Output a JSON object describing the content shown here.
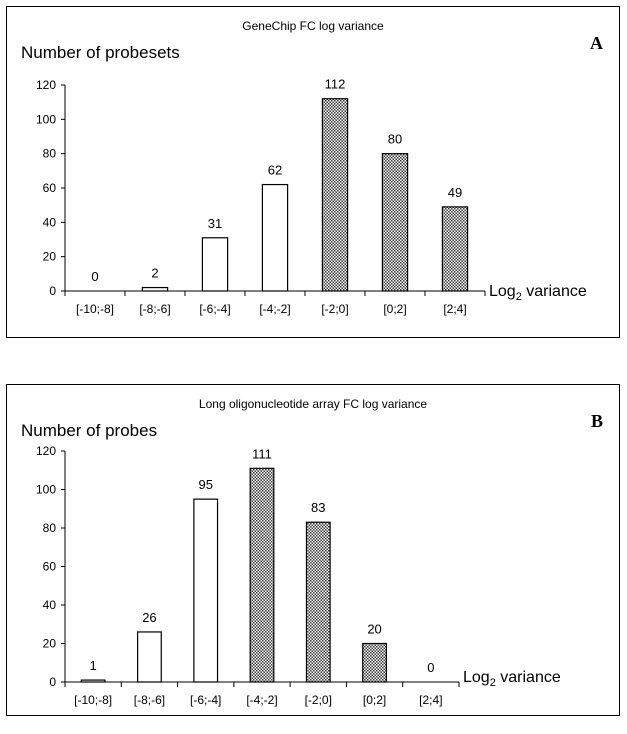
{
  "chart_data": [
    {
      "type": "bar",
      "panel_letter": "A",
      "title": "GeneChip FC log variance",
      "ylabel": "Number of probesets",
      "xlabel_main": "Log",
      "xlabel_sub": "2",
      "xlabel_rest": " variance",
      "categories": [
        "[-10;-8]",
        "[-8;-6]",
        "[-6;-4]",
        "[-4;-2]",
        "[-2;0]",
        "[0;2]",
        "[2;4]"
      ],
      "values": [
        0,
        2,
        31,
        62,
        112,
        80,
        49
      ],
      "fill_pattern": [
        "plain",
        "plain",
        "plain",
        "plain",
        "hatched",
        "hatched",
        "hatched"
      ],
      "yticks": [
        0,
        20,
        40,
        60,
        80,
        100,
        120
      ],
      "ylim": [
        0,
        120
      ]
    },
    {
      "type": "bar",
      "panel_letter": "B",
      "title": "Long oligonucleotide array FC log variance",
      "ylabel": "Number of probes",
      "xlabel_main": "Log",
      "xlabel_sub": "2",
      "xlabel_rest": " variance",
      "categories": [
        "[-10;-8]",
        "[-8;-6]",
        "[-6;-4]",
        "[-4;-2]",
        "[-2;0]",
        "[0;2]",
        "[2;4]"
      ],
      "values": [
        1,
        26,
        95,
        111,
        83,
        20,
        0
      ],
      "fill_pattern": [
        "plain",
        "plain",
        "plain",
        "hatched",
        "hatched",
        "hatched",
        "plain"
      ],
      "yticks": [
        0,
        20,
        40,
        60,
        80,
        100,
        120
      ],
      "ylim": [
        0,
        120
      ]
    }
  ]
}
